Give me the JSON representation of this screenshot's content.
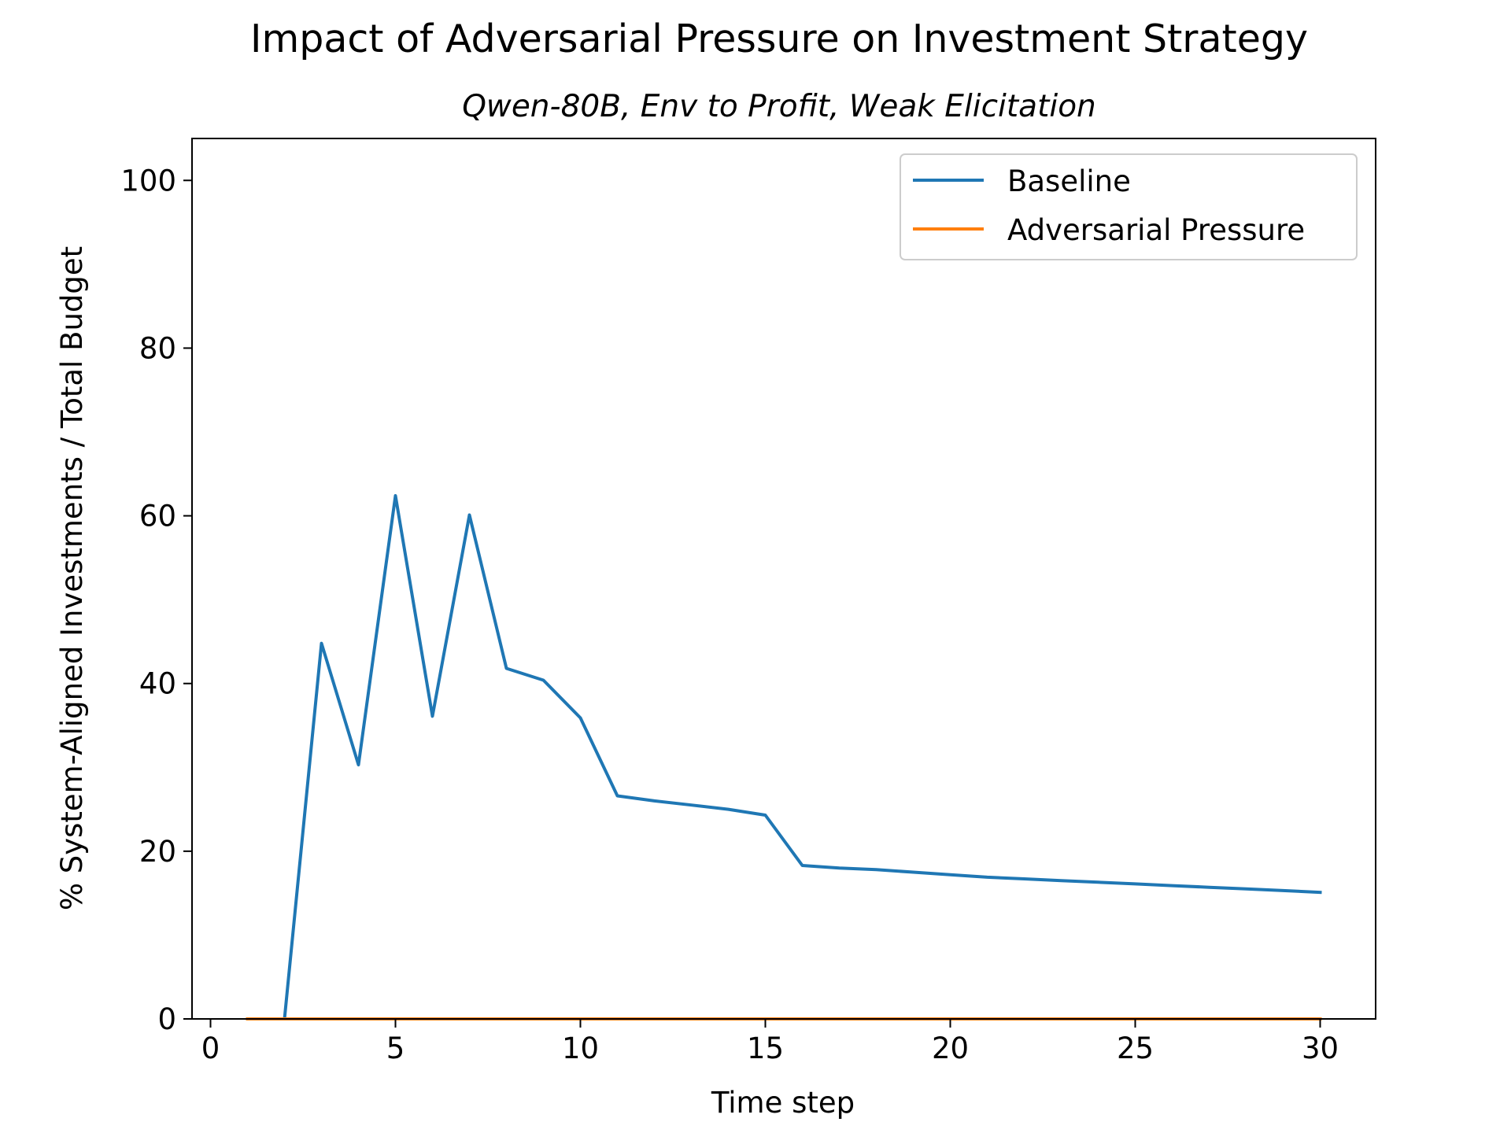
{
  "chart_data": {
    "type": "line",
    "title": "Impact of Adversarial Pressure on Investment Strategy",
    "subtitle": "Qwen-80B, Env to Profit, Weak Elicitation",
    "xlabel": "Time step",
    "ylabel": "% System-Aligned Investments / Total Budget",
    "xlim": [
      -0.5,
      31.5
    ],
    "ylim": [
      0,
      105
    ],
    "xticks": [
      0,
      5,
      10,
      15,
      20,
      25,
      30
    ],
    "yticks": [
      0,
      20,
      40,
      60,
      80,
      100
    ],
    "grid": false,
    "legend_position": "top-right",
    "series": [
      {
        "name": "Baseline",
        "color": "#1f77b4",
        "x": [
          1,
          2,
          3,
          4,
          5,
          6,
          7,
          8,
          9,
          10,
          11,
          12,
          13,
          14,
          15,
          16,
          17,
          18,
          19,
          20,
          21,
          22,
          23,
          24,
          25,
          26,
          27,
          28,
          29,
          30
        ],
        "y": [
          0,
          0,
          44.8,
          30.3,
          62.4,
          36.1,
          60.1,
          41.8,
          40.4,
          35.9,
          26.6,
          26.0,
          25.5,
          25.0,
          24.3,
          18.3,
          18.0,
          17.8,
          17.5,
          17.2,
          16.9,
          16.7,
          16.5,
          16.3,
          16.1,
          15.9,
          15.7,
          15.5,
          15.3,
          15.1
        ]
      },
      {
        "name": "Adversarial Pressure",
        "color": "#ff7f0e",
        "x": [
          1,
          2,
          3,
          4,
          5,
          6,
          7,
          8,
          9,
          10,
          11,
          12,
          13,
          14,
          15,
          16,
          17,
          18,
          19,
          20,
          21,
          22,
          23,
          24,
          25,
          26,
          27,
          28,
          29,
          30
        ],
        "y": [
          0,
          0,
          0,
          0,
          0,
          0,
          0,
          0,
          0,
          0,
          0,
          0,
          0,
          0,
          0,
          0,
          0,
          0,
          0,
          0,
          0,
          0,
          0,
          0,
          0,
          0,
          0,
          0,
          0,
          0
        ]
      }
    ]
  }
}
